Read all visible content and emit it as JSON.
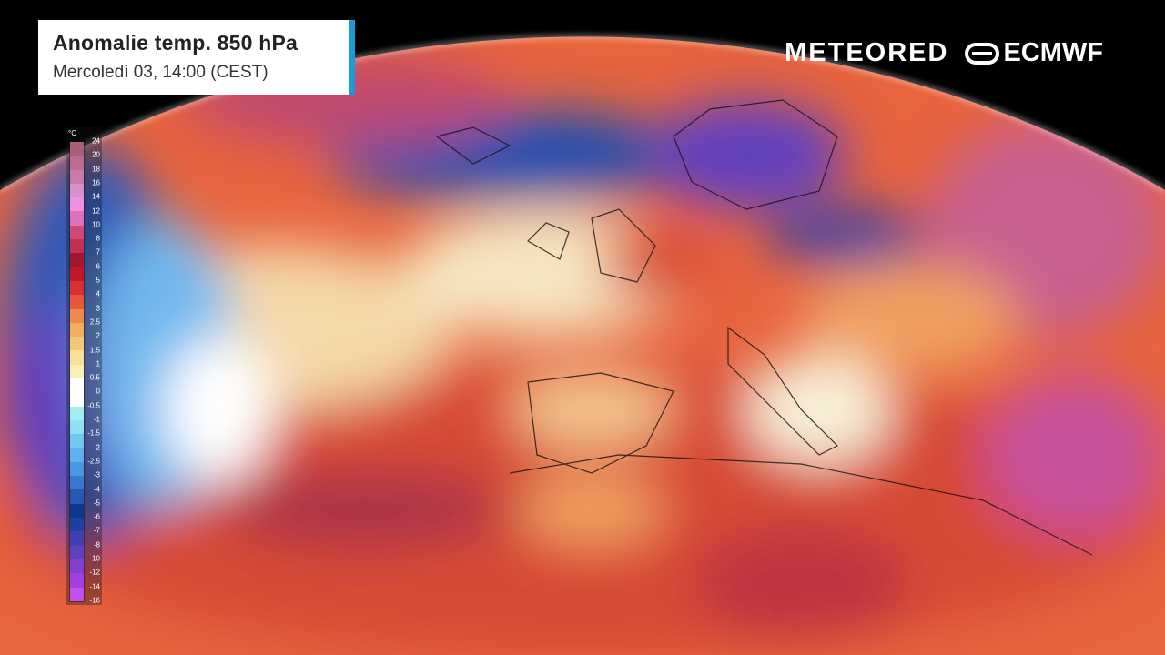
{
  "title": "Anomalie temp. 850 hPa",
  "subtitle": "Mercoledì 03, 14:00 (CEST)",
  "logos": {
    "meteored": "METEORED",
    "ecmwf": "ECMWF"
  },
  "legend": {
    "unit": "°C",
    "labels": [
      "24",
      "20",
      "18",
      "16",
      "14",
      "12",
      "10",
      "8",
      "7",
      "6",
      "5",
      "4",
      "3",
      "2.5",
      "2",
      "1.5",
      "1",
      "0.5",
      "0",
      "-0.5",
      "-1",
      "-1.5",
      "-2",
      "-2.5",
      "-3",
      "-4",
      "-5",
      "-6",
      "-7",
      "-8",
      "-10",
      "-12",
      "-14",
      "-16"
    ],
    "colors": [
      "#a8607a",
      "#b86d90",
      "#c87aa8",
      "#d890c8",
      "#f090e0",
      "#e070b8",
      "#d04878",
      "#c03050",
      "#a01830",
      "#c01828",
      "#d83030",
      "#e85838",
      "#f08850",
      "#f0b060",
      "#f0c878",
      "#f8e098",
      "#f8f0b0",
      "#ffffff",
      "#ffffff",
      "#a0f0f0",
      "#90e0f0",
      "#70c8f0",
      "#60b0f0",
      "#4898e0",
      "#3878d0",
      "#2858b0",
      "#103888",
      "#2040a0",
      "#4040b0",
      "#6040c0",
      "#8040d0",
      "#a040e0",
      "#c050f0"
    ]
  }
}
